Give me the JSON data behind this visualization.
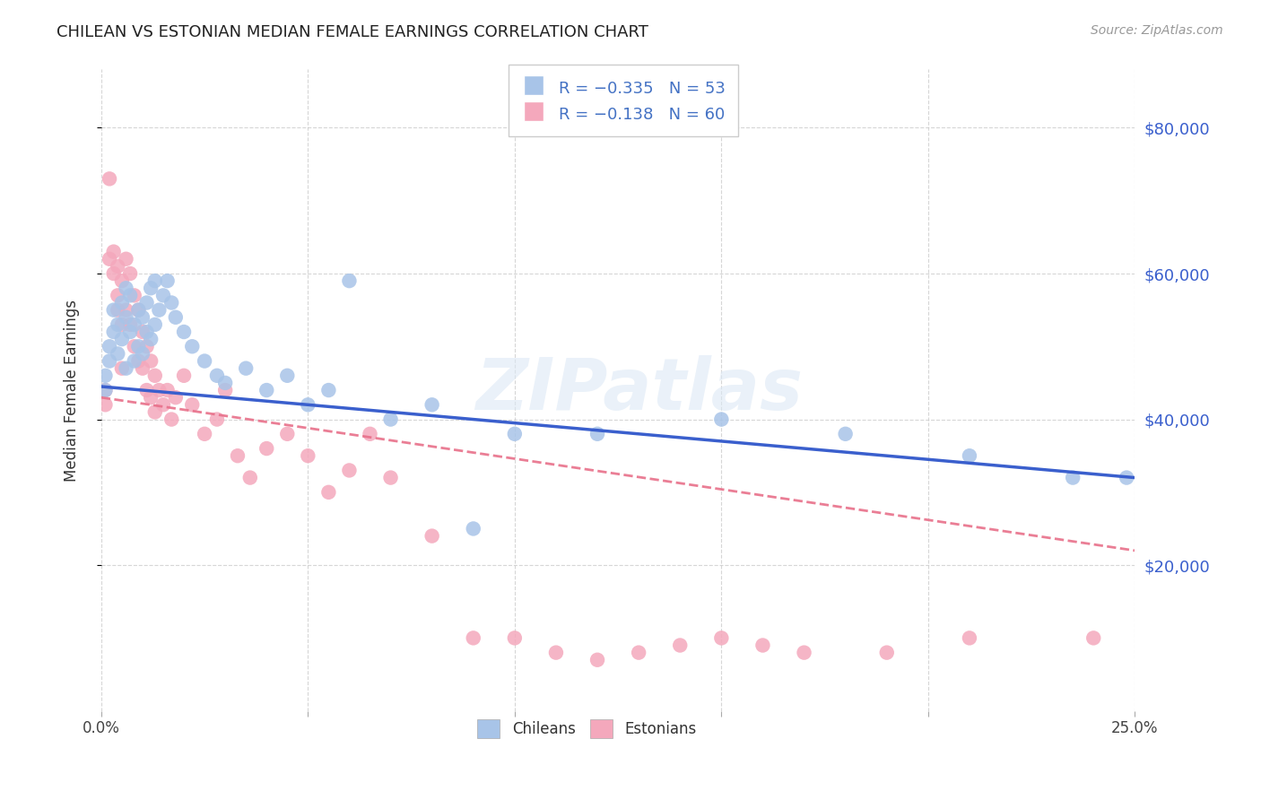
{
  "title": "CHILEAN VS ESTONIAN MEDIAN FEMALE EARNINGS CORRELATION CHART",
  "source": "Source: ZipAtlas.com",
  "ylabel": "Median Female Earnings",
  "yticks": [
    20000,
    40000,
    60000,
    80000
  ],
  "ytick_labels": [
    "$20,000",
    "$40,000",
    "$60,000",
    "$80,000"
  ],
  "watermark": "ZIPatlas",
  "chilean_color": "#a8c4e8",
  "estonian_color": "#f4a8bc",
  "chilean_line_color": "#3a5fcd",
  "estonian_line_color": "#e8708a",
  "background_color": "#ffffff",
  "grid_color": "#cccccc",
  "chileans_x": [
    0.001,
    0.001,
    0.002,
    0.002,
    0.003,
    0.003,
    0.004,
    0.004,
    0.005,
    0.005,
    0.006,
    0.006,
    0.006,
    0.007,
    0.007,
    0.008,
    0.008,
    0.009,
    0.009,
    0.01,
    0.01,
    0.011,
    0.011,
    0.012,
    0.012,
    0.013,
    0.013,
    0.014,
    0.015,
    0.016,
    0.017,
    0.018,
    0.02,
    0.022,
    0.025,
    0.028,
    0.03,
    0.035,
    0.04,
    0.045,
    0.05,
    0.055,
    0.06,
    0.07,
    0.08,
    0.09,
    0.1,
    0.12,
    0.15,
    0.18,
    0.21,
    0.235,
    0.248
  ],
  "chileans_y": [
    44000,
    46000,
    50000,
    48000,
    55000,
    52000,
    53000,
    49000,
    56000,
    51000,
    58000,
    54000,
    47000,
    57000,
    52000,
    53000,
    48000,
    55000,
    50000,
    54000,
    49000,
    56000,
    52000,
    58000,
    51000,
    59000,
    53000,
    55000,
    57000,
    59000,
    56000,
    54000,
    52000,
    50000,
    48000,
    46000,
    45000,
    47000,
    44000,
    46000,
    42000,
    44000,
    59000,
    40000,
    42000,
    25000,
    38000,
    38000,
    40000,
    38000,
    35000,
    32000,
    32000
  ],
  "estonians_x": [
    0.001,
    0.001,
    0.002,
    0.002,
    0.003,
    0.003,
    0.004,
    0.004,
    0.004,
    0.005,
    0.005,
    0.005,
    0.006,
    0.006,
    0.007,
    0.007,
    0.008,
    0.008,
    0.009,
    0.009,
    0.01,
    0.01,
    0.011,
    0.011,
    0.012,
    0.012,
    0.013,
    0.013,
    0.014,
    0.015,
    0.016,
    0.017,
    0.018,
    0.02,
    0.022,
    0.025,
    0.028,
    0.03,
    0.033,
    0.036,
    0.04,
    0.045,
    0.05,
    0.055,
    0.06,
    0.065,
    0.07,
    0.08,
    0.09,
    0.1,
    0.11,
    0.12,
    0.13,
    0.14,
    0.15,
    0.16,
    0.17,
    0.19,
    0.21,
    0.24
  ],
  "estonians_y": [
    44000,
    42000,
    73000,
    62000,
    63000,
    60000,
    57000,
    61000,
    55000,
    59000,
    53000,
    47000,
    62000,
    55000,
    60000,
    53000,
    57000,
    50000,
    55000,
    48000,
    52000,
    47000,
    50000,
    44000,
    48000,
    43000,
    46000,
    41000,
    44000,
    42000,
    44000,
    40000,
    43000,
    46000,
    42000,
    38000,
    40000,
    44000,
    35000,
    32000,
    36000,
    38000,
    35000,
    30000,
    33000,
    38000,
    32000,
    24000,
    10000,
    10000,
    8000,
    7000,
    8000,
    9000,
    10000,
    9000,
    8000,
    8000,
    10000,
    10000
  ]
}
